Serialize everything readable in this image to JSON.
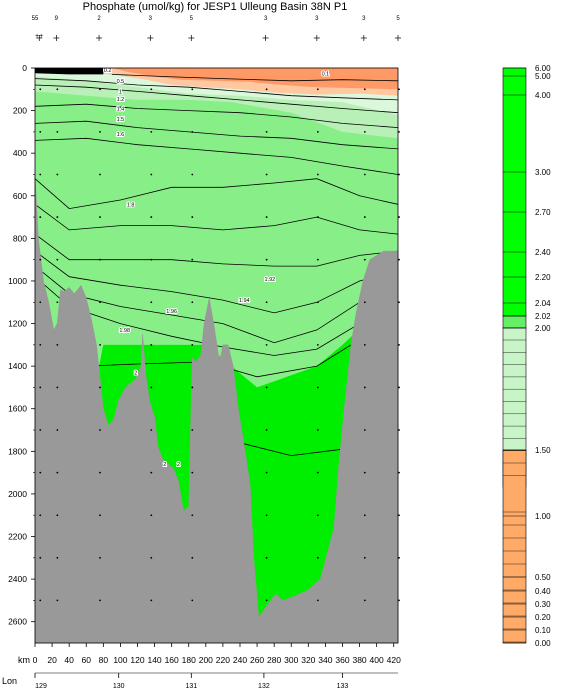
{
  "chart_data": {
    "type": "contour-section",
    "title": "Phosphate (umol/kg) for JESP1 Ulleung Basin 38N P1",
    "xlabel": "km",
    "lon_label": "Lon",
    "xlim": [
      0,
      425
    ],
    "ylim": [
      0,
      2700
    ],
    "y_reversed": true,
    "x_ticks": [
      0,
      20,
      40,
      60,
      80,
      100,
      120,
      140,
      160,
      180,
      200,
      220,
      240,
      260,
      280,
      300,
      320,
      340,
      360,
      380,
      400,
      420
    ],
    "y_ticks": [
      0,
      200,
      400,
      600,
      800,
      1000,
      1200,
      1400,
      1600,
      1800,
      2000,
      2200,
      2400,
      2600
    ],
    "lon_ticks": [
      {
        "km": 0,
        "label": "129"
      },
      {
        "km": 98,
        "label": "130"
      },
      {
        "km": 183,
        "label": "131"
      },
      {
        "km": 268,
        "label": "132"
      },
      {
        "km": 360,
        "label": "133"
      }
    ],
    "station_km": [
      5,
      25,
      75,
      135,
      183,
      270,
      330,
      385,
      425
    ],
    "stations_row1": [
      {
        "km": 0,
        "label": "55"
      },
      {
        "km": 25,
        "label": "9"
      },
      {
        "km": 75,
        "label": "2"
      },
      {
        "km": 135,
        "label": "3"
      },
      {
        "km": 183,
        "label": "5"
      },
      {
        "km": 270,
        "label": "3"
      },
      {
        "km": 330,
        "label": "3"
      },
      {
        "km": 385,
        "label": "3"
      },
      {
        "km": 425,
        "label": "5"
      }
    ],
    "stations_row2_first": "++",
    "contour_labels": [
      {
        "km": 85,
        "depth": 10,
        "text": "0.2"
      },
      {
        "km": 340,
        "depth": 25,
        "text": "0.1"
      },
      {
        "km": 100,
        "depth": 60,
        "text": "0.5"
      },
      {
        "km": 100,
        "depth": 110,
        "text": "1"
      },
      {
        "km": 100,
        "depth": 145,
        "text": "1.2"
      },
      {
        "km": 100,
        "depth": 190,
        "text": "1.4"
      },
      {
        "km": 100,
        "depth": 240,
        "text": "1.5"
      },
      {
        "km": 100,
        "depth": 310,
        "text": "1.6"
      },
      {
        "km": 112,
        "depth": 640,
        "text": "1.8"
      },
      {
        "km": 275,
        "depth": 990,
        "text": "1.92"
      },
      {
        "km": 245,
        "depth": 1090,
        "text": "1.94"
      },
      {
        "km": 160,
        "depth": 1140,
        "text": "1.96"
      },
      {
        "km": 105,
        "depth": 1230,
        "text": "1.98"
      },
      {
        "km": 118,
        "depth": 1430,
        "text": "2"
      },
      {
        "km": 152,
        "depth": 1860,
        "text": "2"
      },
      {
        "km": 168,
        "depth": 1860,
        "text": "2"
      }
    ],
    "color_scale": [
      {
        "label": "6.00",
        "color": "#00ff00"
      },
      {
        "label": "5.00",
        "color": "#00ff00"
      },
      {
        "label": "4.00",
        "color": "#00ff00"
      },
      {
        "label": "3.00",
        "color": "#00ff00"
      },
      {
        "label": "2.70",
        "color": "#00ff00"
      },
      {
        "label": "2.40",
        "color": "#00ff00"
      },
      {
        "label": "2.20",
        "color": "#00ff00"
      },
      {
        "label": "2.04",
        "color": "#00ff00"
      },
      {
        "label": "2.02",
        "color": "#00ff00"
      },
      {
        "label": "2.00",
        "color": "#66ee66"
      },
      {
        "label": "1.50",
        "color": "#c8f5c8"
      },
      {
        "label": "1.00",
        "color": "#ffc090"
      },
      {
        "label": "0.50",
        "color": "#ffaa66"
      },
      {
        "label": "0.40",
        "color": "#ffaa66"
      },
      {
        "label": "0.30",
        "color": "#ffaa66"
      },
      {
        "label": "0.20",
        "color": "#ffaa66"
      },
      {
        "label": "0.10",
        "color": "#ff9955"
      },
      {
        "label": "0.00",
        "color": "#ff9955"
      }
    ],
    "colors": {
      "bottom": "#999999",
      "green_deep": "#00ee00",
      "green_mid": "#88ee88",
      "green_light": "#b8f0b8",
      "green_pale": "#dcf8dc",
      "orange_light": "#ffc8a0",
      "orange": "#ff9966",
      "black": "#000000"
    }
  }
}
